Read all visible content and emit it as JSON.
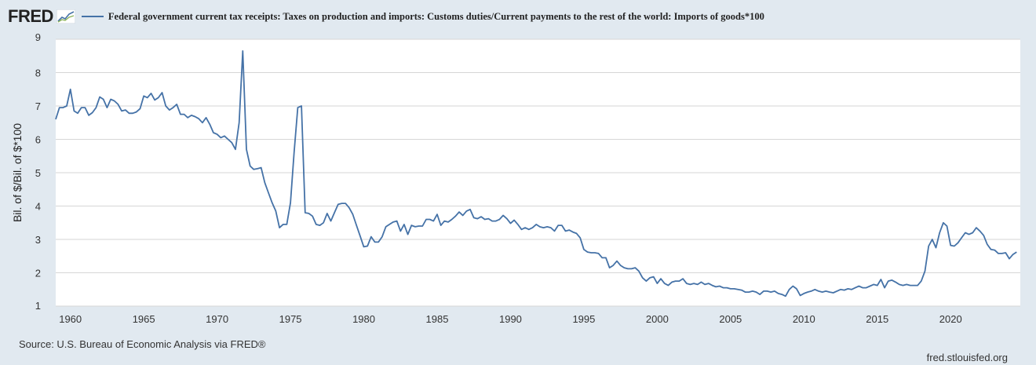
{
  "header": {
    "logo_text": "FRED",
    "series_title": "Federal government current tax receipts: Taxes on production and imports: Customs duties/Current payments to the rest of the world: Imports of goods*100"
  },
  "footer": {
    "source": "Source: U.S. Bureau of Economic Analysis via FRED®",
    "url": "fred.stlouisfed.org"
  },
  "colors": {
    "background": "#e1e9f0",
    "plot_background": "#ffffff",
    "series": "#4572a7",
    "grid": "#d6d6d6"
  },
  "chart_data": {
    "type": "line",
    "title": "",
    "ylabel": "Bil. of $/Bil. of $*100",
    "xlabel": "",
    "xlim": [
      1959.0,
      2024.75
    ],
    "ylim": [
      1,
      9
    ],
    "x_ticks": [
      1960,
      1965,
      1970,
      1975,
      1980,
      1985,
      1990,
      1995,
      2000,
      2005,
      2010,
      2015,
      2020
    ],
    "y_ticks": [
      1,
      2,
      3,
      4,
      5,
      6,
      7,
      8,
      9
    ],
    "grid": true,
    "legend_position": "top",
    "series": [
      {
        "name": "Federal government current tax receipts: Taxes on production and imports: Customs duties/Current payments to the rest of the world: Imports of goods*100",
        "points": [
          [
            1959.0,
            6.6
          ],
          [
            1959.25,
            6.95
          ],
          [
            1959.5,
            6.95
          ],
          [
            1959.75,
            7.0
          ],
          [
            1960.0,
            7.5
          ],
          [
            1960.25,
            6.85
          ],
          [
            1960.5,
            6.78
          ],
          [
            1960.75,
            6.95
          ],
          [
            1961.0,
            6.95
          ],
          [
            1961.25,
            6.72
          ],
          [
            1961.5,
            6.8
          ],
          [
            1961.75,
            6.95
          ],
          [
            1962.0,
            7.27
          ],
          [
            1962.25,
            7.2
          ],
          [
            1962.5,
            6.95
          ],
          [
            1962.75,
            7.2
          ],
          [
            1963.0,
            7.15
          ],
          [
            1963.25,
            7.05
          ],
          [
            1963.5,
            6.85
          ],
          [
            1963.75,
            6.88
          ],
          [
            1964.0,
            6.78
          ],
          [
            1964.25,
            6.78
          ],
          [
            1964.5,
            6.82
          ],
          [
            1964.75,
            6.92
          ],
          [
            1965.0,
            7.3
          ],
          [
            1965.25,
            7.25
          ],
          [
            1965.5,
            7.38
          ],
          [
            1965.75,
            7.18
          ],
          [
            1966.0,
            7.25
          ],
          [
            1966.25,
            7.4
          ],
          [
            1966.5,
            7.0
          ],
          [
            1966.75,
            6.88
          ],
          [
            1967.0,
            6.95
          ],
          [
            1967.25,
            7.05
          ],
          [
            1967.5,
            6.75
          ],
          [
            1967.75,
            6.75
          ],
          [
            1968.0,
            6.65
          ],
          [
            1968.25,
            6.72
          ],
          [
            1968.5,
            6.68
          ],
          [
            1968.75,
            6.62
          ],
          [
            1969.0,
            6.5
          ],
          [
            1969.25,
            6.65
          ],
          [
            1969.5,
            6.45
          ],
          [
            1969.75,
            6.2
          ],
          [
            1970.0,
            6.15
          ],
          [
            1970.25,
            6.05
          ],
          [
            1970.5,
            6.1
          ],
          [
            1970.75,
            6.0
          ],
          [
            1971.0,
            5.9
          ],
          [
            1971.25,
            5.7
          ],
          [
            1971.5,
            6.5
          ],
          [
            1971.75,
            8.65
          ],
          [
            1972.0,
            5.7
          ],
          [
            1972.25,
            5.2
          ],
          [
            1972.5,
            5.1
          ],
          [
            1972.75,
            5.12
          ],
          [
            1973.0,
            5.15
          ],
          [
            1973.25,
            4.7
          ],
          [
            1973.5,
            4.4
          ],
          [
            1973.75,
            4.1
          ],
          [
            1974.0,
            3.85
          ],
          [
            1974.25,
            3.35
          ],
          [
            1974.5,
            3.45
          ],
          [
            1974.75,
            3.45
          ],
          [
            1975.0,
            4.1
          ],
          [
            1975.25,
            5.6
          ],
          [
            1975.5,
            6.95
          ],
          [
            1975.75,
            7.0
          ],
          [
            1976.0,
            3.8
          ],
          [
            1976.25,
            3.78
          ],
          [
            1976.5,
            3.7
          ],
          [
            1976.75,
            3.45
          ],
          [
            1977.0,
            3.42
          ],
          [
            1977.25,
            3.5
          ],
          [
            1977.5,
            3.78
          ],
          [
            1977.75,
            3.55
          ],
          [
            1978.0,
            3.8
          ],
          [
            1978.25,
            4.05
          ],
          [
            1978.5,
            4.08
          ],
          [
            1978.75,
            4.08
          ],
          [
            1979.0,
            3.95
          ],
          [
            1979.25,
            3.75
          ],
          [
            1979.5,
            3.42
          ],
          [
            1979.75,
            3.1
          ],
          [
            1980.0,
            2.78
          ],
          [
            1980.25,
            2.8
          ],
          [
            1980.5,
            3.08
          ],
          [
            1980.75,
            2.92
          ],
          [
            1981.0,
            2.92
          ],
          [
            1981.25,
            3.08
          ],
          [
            1981.5,
            3.38
          ],
          [
            1981.75,
            3.45
          ],
          [
            1982.0,
            3.52
          ],
          [
            1982.25,
            3.55
          ],
          [
            1982.5,
            3.25
          ],
          [
            1982.75,
            3.45
          ],
          [
            1983.0,
            3.15
          ],
          [
            1983.25,
            3.42
          ],
          [
            1983.5,
            3.38
          ],
          [
            1983.75,
            3.4
          ],
          [
            1984.0,
            3.4
          ],
          [
            1984.25,
            3.6
          ],
          [
            1984.5,
            3.6
          ],
          [
            1984.75,
            3.55
          ],
          [
            1985.0,
            3.75
          ],
          [
            1985.25,
            3.42
          ],
          [
            1985.5,
            3.55
          ],
          [
            1985.75,
            3.52
          ],
          [
            1986.0,
            3.6
          ],
          [
            1986.25,
            3.7
          ],
          [
            1986.5,
            3.82
          ],
          [
            1986.75,
            3.72
          ],
          [
            1987.0,
            3.85
          ],
          [
            1987.25,
            3.9
          ],
          [
            1987.5,
            3.65
          ],
          [
            1987.75,
            3.62
          ],
          [
            1988.0,
            3.68
          ],
          [
            1988.25,
            3.6
          ],
          [
            1988.5,
            3.62
          ],
          [
            1988.75,
            3.55
          ],
          [
            1989.0,
            3.55
          ],
          [
            1989.25,
            3.6
          ],
          [
            1989.5,
            3.72
          ],
          [
            1989.75,
            3.62
          ],
          [
            1990.0,
            3.48
          ],
          [
            1990.25,
            3.58
          ],
          [
            1990.5,
            3.45
          ],
          [
            1990.75,
            3.3
          ],
          [
            1991.0,
            3.35
          ],
          [
            1991.25,
            3.3
          ],
          [
            1991.5,
            3.35
          ],
          [
            1991.75,
            3.45
          ],
          [
            1992.0,
            3.38
          ],
          [
            1992.25,
            3.35
          ],
          [
            1992.5,
            3.38
          ],
          [
            1992.75,
            3.35
          ],
          [
            1993.0,
            3.25
          ],
          [
            1993.25,
            3.42
          ],
          [
            1993.5,
            3.42
          ],
          [
            1993.75,
            3.25
          ],
          [
            1994.0,
            3.28
          ],
          [
            1994.25,
            3.22
          ],
          [
            1994.5,
            3.18
          ],
          [
            1994.75,
            3.05
          ],
          [
            1995.0,
            2.7
          ],
          [
            1995.25,
            2.62
          ],
          [
            1995.5,
            2.6
          ],
          [
            1995.75,
            2.6
          ],
          [
            1996.0,
            2.58
          ],
          [
            1996.25,
            2.45
          ],
          [
            1996.5,
            2.45
          ],
          [
            1996.75,
            2.15
          ],
          [
            1997.0,
            2.22
          ],
          [
            1997.25,
            2.35
          ],
          [
            1997.5,
            2.22
          ],
          [
            1997.75,
            2.15
          ],
          [
            1998.0,
            2.12
          ],
          [
            1998.25,
            2.12
          ],
          [
            1998.5,
            2.15
          ],
          [
            1998.75,
            2.05
          ],
          [
            1999.0,
            1.85
          ],
          [
            1999.25,
            1.75
          ],
          [
            1999.5,
            1.85
          ],
          [
            1999.75,
            1.88
          ],
          [
            2000.0,
            1.68
          ],
          [
            2000.25,
            1.82
          ],
          [
            2000.5,
            1.68
          ],
          [
            2000.75,
            1.62
          ],
          [
            2001.0,
            1.72
          ],
          [
            2001.25,
            1.75
          ],
          [
            2001.5,
            1.75
          ],
          [
            2001.75,
            1.82
          ],
          [
            2002.0,
            1.68
          ],
          [
            2002.25,
            1.65
          ],
          [
            2002.5,
            1.68
          ],
          [
            2002.75,
            1.65
          ],
          [
            2003.0,
            1.72
          ],
          [
            2003.25,
            1.65
          ],
          [
            2003.5,
            1.68
          ],
          [
            2003.75,
            1.62
          ],
          [
            2004.0,
            1.58
          ],
          [
            2004.25,
            1.6
          ],
          [
            2004.5,
            1.55
          ],
          [
            2004.75,
            1.55
          ],
          [
            2005.0,
            1.52
          ],
          [
            2005.25,
            1.52
          ],
          [
            2005.5,
            1.5
          ],
          [
            2005.75,
            1.48
          ],
          [
            2006.0,
            1.42
          ],
          [
            2006.25,
            1.42
          ],
          [
            2006.5,
            1.45
          ],
          [
            2006.75,
            1.42
          ],
          [
            2007.0,
            1.35
          ],
          [
            2007.25,
            1.45
          ],
          [
            2007.5,
            1.45
          ],
          [
            2007.75,
            1.42
          ],
          [
            2008.0,
            1.45
          ],
          [
            2008.25,
            1.38
          ],
          [
            2008.5,
            1.35
          ],
          [
            2008.75,
            1.3
          ],
          [
            2009.0,
            1.5
          ],
          [
            2009.25,
            1.6
          ],
          [
            2009.5,
            1.52
          ],
          [
            2009.75,
            1.32
          ],
          [
            2010.0,
            1.38
          ],
          [
            2010.25,
            1.42
          ],
          [
            2010.5,
            1.45
          ],
          [
            2010.75,
            1.5
          ],
          [
            2011.0,
            1.45
          ],
          [
            2011.25,
            1.42
          ],
          [
            2011.5,
            1.45
          ],
          [
            2011.75,
            1.42
          ],
          [
            2012.0,
            1.4
          ],
          [
            2012.25,
            1.45
          ],
          [
            2012.5,
            1.5
          ],
          [
            2012.75,
            1.48
          ],
          [
            2013.0,
            1.52
          ],
          [
            2013.25,
            1.5
          ],
          [
            2013.5,
            1.55
          ],
          [
            2013.75,
            1.6
          ],
          [
            2014.0,
            1.55
          ],
          [
            2014.25,
            1.55
          ],
          [
            2014.5,
            1.6
          ],
          [
            2014.75,
            1.65
          ],
          [
            2015.0,
            1.62
          ],
          [
            2015.25,
            1.8
          ],
          [
            2015.5,
            1.55
          ],
          [
            2015.75,
            1.75
          ],
          [
            2016.0,
            1.78
          ],
          [
            2016.25,
            1.72
          ],
          [
            2016.5,
            1.65
          ],
          [
            2016.75,
            1.62
          ],
          [
            2017.0,
            1.65
          ],
          [
            2017.25,
            1.62
          ],
          [
            2017.5,
            1.62
          ],
          [
            2017.75,
            1.62
          ],
          [
            2018.0,
            1.75
          ],
          [
            2018.25,
            2.05
          ],
          [
            2018.5,
            2.8
          ],
          [
            2018.75,
            3.0
          ],
          [
            2019.0,
            2.75
          ],
          [
            2019.25,
            3.2
          ],
          [
            2019.5,
            3.5
          ],
          [
            2019.75,
            3.4
          ],
          [
            2020.0,
            2.82
          ],
          [
            2020.25,
            2.8
          ],
          [
            2020.5,
            2.9
          ],
          [
            2020.75,
            3.05
          ],
          [
            2021.0,
            3.2
          ],
          [
            2021.25,
            3.15
          ],
          [
            2021.5,
            3.2
          ],
          [
            2021.75,
            3.35
          ],
          [
            2022.0,
            3.25
          ],
          [
            2022.25,
            3.12
          ],
          [
            2022.5,
            2.85
          ],
          [
            2022.75,
            2.7
          ],
          [
            2023.0,
            2.68
          ],
          [
            2023.25,
            2.58
          ],
          [
            2023.5,
            2.58
          ],
          [
            2023.75,
            2.6
          ],
          [
            2024.0,
            2.42
          ],
          [
            2024.25,
            2.55
          ],
          [
            2024.5,
            2.62
          ]
        ]
      }
    ]
  }
}
